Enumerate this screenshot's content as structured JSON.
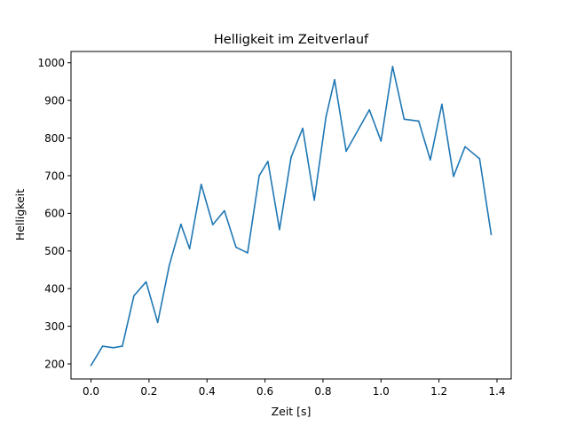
{
  "chart_data": {
    "type": "line",
    "title": "Helligkeit im Zeitverlauf",
    "xlabel": "Zeit [s]",
    "ylabel": "Helligkeit",
    "xlim": [
      -0.069,
      1.449
    ],
    "ylim": [
      160,
      1030
    ],
    "xticks": [
      0.0,
      0.2,
      0.4,
      0.6,
      0.8,
      1.0,
      1.2,
      1.4
    ],
    "xtick_labels": [
      "0.0",
      "0.2",
      "0.4",
      "0.6",
      "0.8",
      "1.0",
      "1.2",
      "1.4"
    ],
    "yticks": [
      200,
      300,
      400,
      500,
      600,
      700,
      800,
      900,
      1000
    ],
    "ytick_labels": [
      "200",
      "300",
      "400",
      "500",
      "600",
      "700",
      "800",
      "900",
      "1000"
    ],
    "grid": false,
    "line_color": "#1f77b4",
    "x": [
      0.0,
      0.04,
      0.077,
      0.108,
      0.148,
      0.19,
      0.23,
      0.27,
      0.31,
      0.34,
      0.38,
      0.42,
      0.46,
      0.5,
      0.54,
      0.58,
      0.61,
      0.65,
      0.69,
      0.73,
      0.77,
      0.81,
      0.84,
      0.88,
      0.96,
      1.0,
      1.04,
      1.08,
      1.13,
      1.17,
      1.21,
      1.25,
      1.29,
      1.34,
      1.38
    ],
    "y": [
      196,
      247,
      243,
      247,
      381,
      418,
      310,
      462,
      571,
      506,
      677,
      570,
      607,
      510,
      495,
      700,
      738,
      557,
      749,
      826,
      635,
      855,
      955,
      765,
      875,
      792,
      990,
      850,
      845,
      742,
      890,
      698,
      777,
      745,
      544
    ]
  }
}
